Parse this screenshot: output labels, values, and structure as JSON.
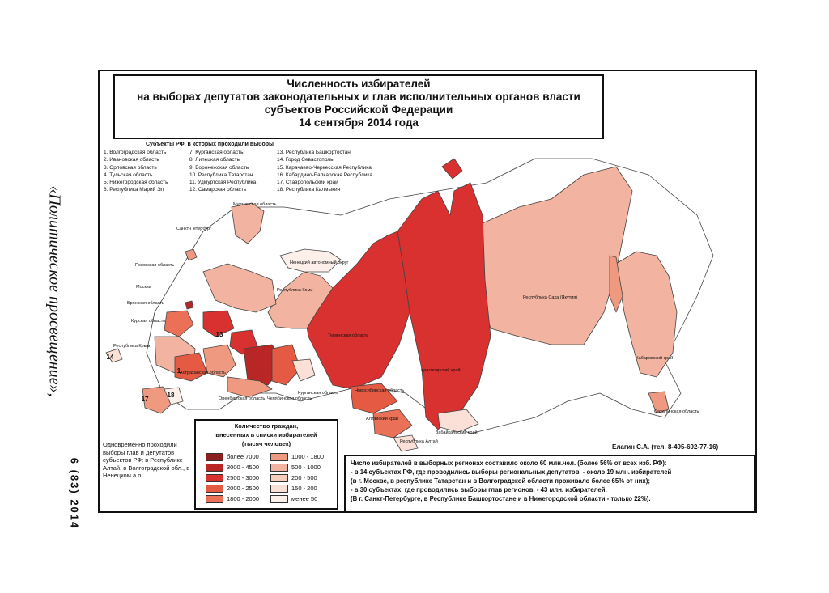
{
  "title": {
    "line1": "Численность избирателей",
    "line2": "на выборах депутатов законодательных и глав исполнительных органов власти",
    "line3": "субъектов Российской Федерации",
    "line4": "14 сентября 2014 года"
  },
  "journal": {
    "name": "«Политическое просвещение»,",
    "issue": "6 (83) 2014"
  },
  "subjects": {
    "heading": "Субъекты РФ, в которых проходили выборы",
    "col1": [
      "1. Волгоградская область",
      "2. Ивановская область",
      "3. Орловская область",
      "4. Тульская область",
      "5. Нижегородская область",
      "6. Республика Марий Эл"
    ],
    "col2": [
      "7. Курганская область",
      "8. Липецкая область",
      "9. Воронежская область",
      "10. Республика Татарстан",
      "11. Удмуртская Республика",
      "12. Самарская область"
    ],
    "col3": [
      "13. Республика Башкортостан",
      "14. Город Севастополь",
      "15. Карачаево-Черкесская Республика",
      "16. Кабардино-Балкарская Республика",
      "17. Ставропольский край",
      "18. Республика Калмыкия"
    ]
  },
  "map_labels": {
    "murmansk": "Мурманская область",
    "spb": "Санкт-Петербург",
    "pskov": "Псковская область",
    "moscow": "Москва",
    "bryansk": "Брянская область",
    "kursk": "Курская область",
    "crimea": "Республика Крым",
    "nenets": "Ненецкий автономный округ",
    "komi": "Республика Коми",
    "tyumen": "Тюменская область",
    "astrakhan": "Астраханская область",
    "chelyabinsk": "Челябинская область",
    "orenburg": "Оренбургская область",
    "kurgan": "Курганская область",
    "novosibirsk": "Новосибирская область",
    "altai_krai": "Алтайский край",
    "altai_rep": "Республика Алтай",
    "krasnoyarsk": "Красноярский край",
    "yakutia": "Республика Саха (Якутия)",
    "khabarovsk": "Хабаровский край",
    "zabaikal": "Забайкальский край",
    "sakhalin": "Сахалинская область"
  },
  "legend": {
    "title1": "Количество граждан,",
    "title2": "внесенных в списки избирателей",
    "title3": "(тысяч человек)",
    "items_left": [
      {
        "label": "более 7000",
        "color": "#8c1f1f"
      },
      {
        "label": "3000 - 4500",
        "color": "#b82626"
      },
      {
        "label": "2500 - 3000",
        "color": "#d93030"
      },
      {
        "label": "2000 - 2500",
        "color": "#e55a42"
      },
      {
        "label": "1800 - 2000",
        "color": "#ea7058"
      }
    ],
    "items_right": [
      {
        "label": "1000 - 1800",
        "color": "#ef9a80"
      },
      {
        "label": "500 - 1000",
        "color": "#f2b4a0"
      },
      {
        "label": "200 - 500",
        "color": "#f7cdbd"
      },
      {
        "label": "150 - 200",
        "color": "#fae0d6"
      },
      {
        "label": "менее 50",
        "color": "#fdf0ea"
      }
    ]
  },
  "simultaneous_note": "Одновременно проходили выборы глав и депутатов субъектов РФ: в Республике Алтай, в Волгоградской обл., в Ненецком а.о.",
  "author": "Елагин С.А. (тел. 8-495-692-77-16)",
  "stats": [
    "Число избирателей в выборных регионах составило около 60 млн.чел. (более 56% от всех изб. РФ):",
    "- в 14 субъектах РФ, где проводились выборы региональных депутатов, - около 19 млн. избирателей",
    "(в г. Москве, в республике Татарстан и в Волгоградской области проживало более 65% от них);",
    "- в 30 субъектах, где проводились выборы глав регионов, - 43 млн. избирателей.",
    "(В г. Санкт-Петербурге, в Республике Башкортостане и в Нижегородской области - только 22%)."
  ]
}
